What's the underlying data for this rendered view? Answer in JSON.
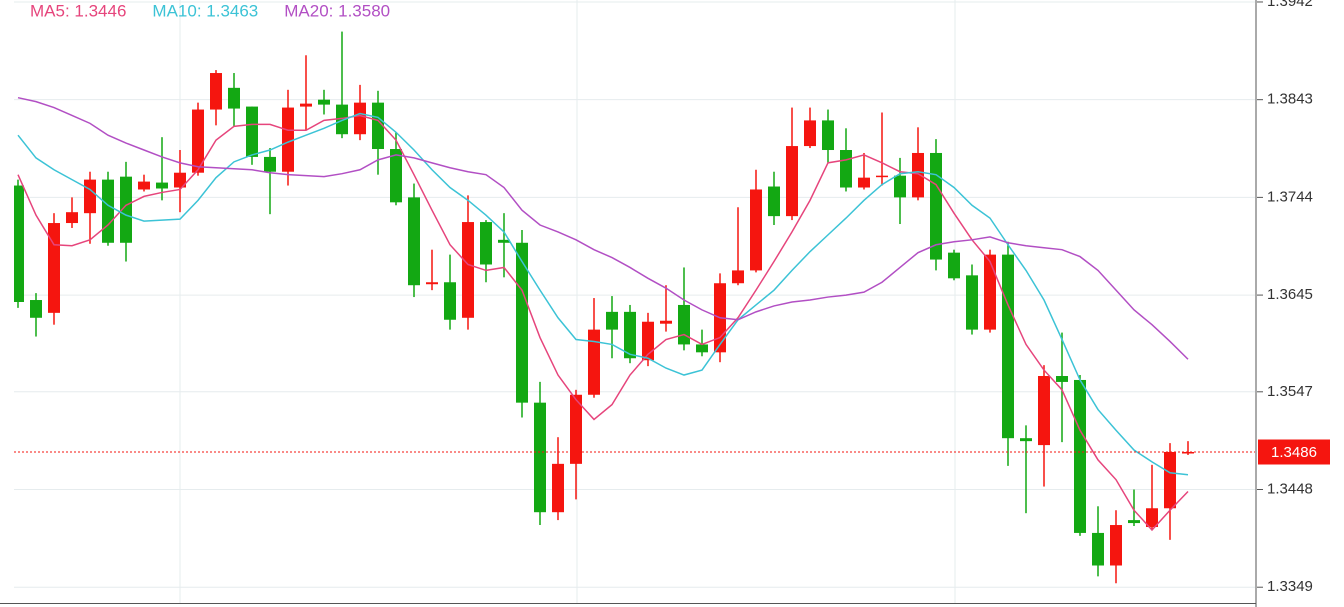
{
  "chart_data": {
    "type": "candlestick",
    "ylim": [
      1.3333,
      1.3944
    ],
    "yticks": [
      1.3942,
      1.3843,
      1.3744,
      1.3645,
      1.3547,
      1.3448,
      1.3349
    ],
    "grid": true,
    "up_color": "#f5150f",
    "down_color": "#13a813",
    "open": [
      1.3756,
      1.364,
      1.3627,
      1.3718,
      1.3728,
      1.3762,
      1.3765,
      1.3752,
      1.3759,
      1.3754,
      1.3769,
      1.3833,
      1.3855,
      1.3836,
      1.3785,
      1.377,
      1.3836,
      1.3843,
      1.3838,
      1.3808,
      1.384,
      1.3793,
      1.3744,
      1.3656,
      1.3658,
      1.3622,
      1.3719,
      1.3701,
      1.3698,
      1.3536,
      1.3425,
      1.3474,
      1.3544,
      1.3628,
      1.3628,
      1.3579,
      1.3616,
      1.3635,
      1.3595,
      1.3587,
      1.3657,
      1.367,
      1.3755,
      1.3725,
      1.3796,
      1.3822,
      1.3792,
      1.3754,
      1.3765,
      1.3766,
      1.3744,
      1.3789,
      1.3688,
      1.3665,
      1.361,
      1.3686,
      1.35,
      1.3493,
      1.3563,
      1.3559,
      1.3404,
      1.3371,
      1.3417,
      1.341,
      1.3429,
      1.3485
    ],
    "high": [
      1.3762,
      1.3647,
      1.3728,
      1.3744,
      1.377,
      1.377,
      1.378,
      1.3767,
      1.3805,
      1.3792,
      1.384,
      1.3873,
      1.387,
      1.3836,
      1.3794,
      1.3853,
      1.3888,
      1.3853,
      1.3912,
      1.3858,
      1.3852,
      1.381,
      1.3758,
      1.3691,
      1.3686,
      1.3746,
      1.3721,
      1.3728,
      1.3711,
      1.3557,
      1.3501,
      1.3549,
      1.3642,
      1.3644,
      1.3635,
      1.3627,
      1.3655,
      1.3673,
      1.361,
      1.3667,
      1.3734,
      1.3772,
      1.377,
      1.3835,
      1.3835,
      1.3833,
      1.3814,
      1.3789,
      1.383,
      1.3784,
      1.3815,
      1.3803,
      1.3691,
      1.3676,
      1.3691,
      1.3699,
      1.3513,
      1.3574,
      1.3607,
      1.3564,
      1.3431,
      1.3427,
      1.3448,
      1.3473,
      1.3495,
      1.3497
    ],
    "low": [
      1.3632,
      1.3603,
      1.3615,
      1.3713,
      1.3697,
      1.3695,
      1.3679,
      1.375,
      1.3741,
      1.3729,
      1.3766,
      1.3817,
      1.3816,
      1.3777,
      1.3727,
      1.3756,
      1.3812,
      1.3828,
      1.3804,
      1.3802,
      1.3767,
      1.3736,
      1.3643,
      1.365,
      1.361,
      1.361,
      1.3658,
      1.3663,
      1.3521,
      1.3412,
      1.3417,
      1.3438,
      1.3541,
      1.3581,
      1.3576,
      1.3573,
      1.3608,
      1.3589,
      1.3583,
      1.3577,
      1.3655,
      1.3668,
      1.3716,
      1.3721,
      1.3794,
      1.3779,
      1.375,
      1.3752,
      1.3756,
      1.3717,
      1.3741,
      1.367,
      1.366,
      1.3605,
      1.3607,
      1.3472,
      1.3424,
      1.3451,
      1.3496,
      1.3401,
      1.336,
      1.3353,
      1.3411,
      1.3407,
      1.3397,
      1.3483
    ],
    "close": [
      1.3638,
      1.3622,
      1.3718,
      1.3729,
      1.3762,
      1.3698,
      1.3698,
      1.376,
      1.3753,
      1.3769,
      1.3833,
      1.387,
      1.3834,
      1.3785,
      1.377,
      1.3835,
      1.3839,
      1.3838,
      1.3808,
      1.384,
      1.3793,
      1.3739,
      1.3655,
      1.3658,
      1.362,
      1.3719,
      1.3676,
      1.3698,
      1.3536,
      1.3425,
      1.3474,
      1.3544,
      1.361,
      1.361,
      1.3581,
      1.3618,
      1.3619,
      1.3595,
      1.3587,
      1.3657,
      1.367,
      1.3752,
      1.3725,
      1.3796,
      1.3822,
      1.3792,
      1.3754,
      1.3764,
      1.3766,
      1.3744,
      1.3789,
      1.3681,
      1.3662,
      1.361,
      1.3686,
      1.35,
      1.3497,
      1.3563,
      1.3557,
      1.3404,
      1.3371,
      1.3412,
      1.3414,
      1.3429,
      1.3486,
      1.3486
    ],
    "series": [
      {
        "name": "MA5: 1.3446",
        "color": "#e6457c",
        "values": [
          1.3767,
          1.3726,
          1.3696,
          1.3695,
          1.3701,
          1.3716,
          1.3736,
          1.3745,
          1.3749,
          1.3752,
          1.3772,
          1.3802,
          1.3816,
          1.3818,
          1.3818,
          1.3812,
          1.3812,
          1.3822,
          1.3824,
          1.3827,
          1.3822,
          1.3802,
          1.3767,
          1.3731,
          1.3696,
          1.3676,
          1.367,
          1.3673,
          1.365,
          1.3602,
          1.3564,
          1.3539,
          1.3519,
          1.3534,
          1.3564,
          1.3585,
          1.36,
          1.3605,
          1.3595,
          1.3602,
          1.3622,
          1.365,
          1.3679,
          1.3709,
          1.3741,
          1.3779,
          1.3782,
          1.3787,
          1.3779,
          1.377,
          1.3768,
          1.3757,
          1.3728,
          1.3701,
          1.3679,
          1.3635,
          1.3595,
          1.3569,
          1.3549,
          1.3508,
          1.3478,
          1.3458,
          1.3427,
          1.3407,
          1.3427,
          1.3446
        ]
      },
      {
        "name": "MA10: 1.3463",
        "color": "#3cc3d6",
        "values": [
          1.3807,
          1.3784,
          1.3772,
          1.3762,
          1.3752,
          1.3736,
          1.3726,
          1.372,
          1.3721,
          1.3722,
          1.3741,
          1.3764,
          1.378,
          1.3787,
          1.3792,
          1.38,
          1.3807,
          1.3814,
          1.3822,
          1.3829,
          1.3825,
          1.381,
          1.3792,
          1.3772,
          1.3754,
          1.3741,
          1.3726,
          1.3709,
          1.3679,
          1.365,
          1.3622,
          1.36,
          1.3598,
          1.3595,
          1.3585,
          1.3581,
          1.3571,
          1.3564,
          1.3569,
          1.3595,
          1.362,
          1.3635,
          1.365,
          1.367,
          1.3689,
          1.3706,
          1.3723,
          1.3741,
          1.3757,
          1.3768,
          1.377,
          1.3767,
          1.3754,
          1.3736,
          1.3723,
          1.3696,
          1.367,
          1.364,
          1.36,
          1.3559,
          1.3529,
          1.3508,
          1.3488,
          1.3476,
          1.3465,
          1.3463
        ]
      },
      {
        "name": "MA20: 1.3580",
        "color": "#b24fc4",
        "values": [
          1.3845,
          1.3841,
          1.3835,
          1.3827,
          1.3819,
          1.3807,
          1.3799,
          1.3792,
          1.3785,
          1.3779,
          1.3775,
          1.3774,
          1.3773,
          1.3772,
          1.3769,
          1.3767,
          1.3766,
          1.3765,
          1.3768,
          1.3772,
          1.3782,
          1.3787,
          1.3784,
          1.3779,
          1.3774,
          1.377,
          1.3767,
          1.3754,
          1.3731,
          1.3716,
          1.3709,
          1.3701,
          1.3691,
          1.3683,
          1.3673,
          1.3662,
          1.3652,
          1.364,
          1.363,
          1.3622,
          1.362,
          1.3628,
          1.3634,
          1.3638,
          1.364,
          1.3643,
          1.3645,
          1.3648,
          1.3658,
          1.3673,
          1.3688,
          1.3696,
          1.3699,
          1.3701,
          1.3704,
          1.3698,
          1.3695,
          1.3693,
          1.3691,
          1.3684,
          1.367,
          1.365,
          1.363,
          1.3615,
          1.3598,
          1.358
        ]
      }
    ],
    "current": 1.3486,
    "current_color": "#f5150f"
  }
}
